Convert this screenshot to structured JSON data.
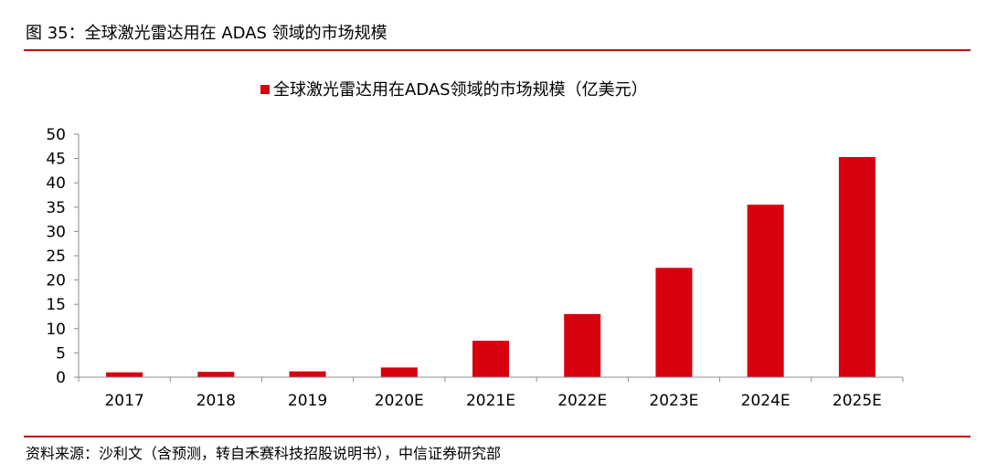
{
  "figure": {
    "title": "图 35：全球激光雷达用在 ADAS 领域的市场规模",
    "source": "资料来源：沙利文（含预测，转自禾赛科技招股说明书），中信证券研究部",
    "rule_color": "#c00000"
  },
  "chart_data": {
    "type": "bar",
    "title": "",
    "xlabel": "",
    "ylabel": "",
    "categories": [
      "2017",
      "2018",
      "2019",
      "2020E",
      "2021E",
      "2022E",
      "2023E",
      "2024E",
      "2025E"
    ],
    "series": [
      {
        "name": "全球激光雷达用在ADAS领域的市场规模（亿美元）",
        "color": "#d7000f",
        "values": [
          1.0,
          1.1,
          1.2,
          2.0,
          7.5,
          13.0,
          22.5,
          35.5,
          45.3
        ]
      }
    ],
    "ylim": [
      0,
      50
    ],
    "yticks": [
      0,
      5,
      10,
      15,
      20,
      25,
      30,
      35,
      40,
      45,
      50
    ],
    "grid": false,
    "legend": "top-center"
  }
}
